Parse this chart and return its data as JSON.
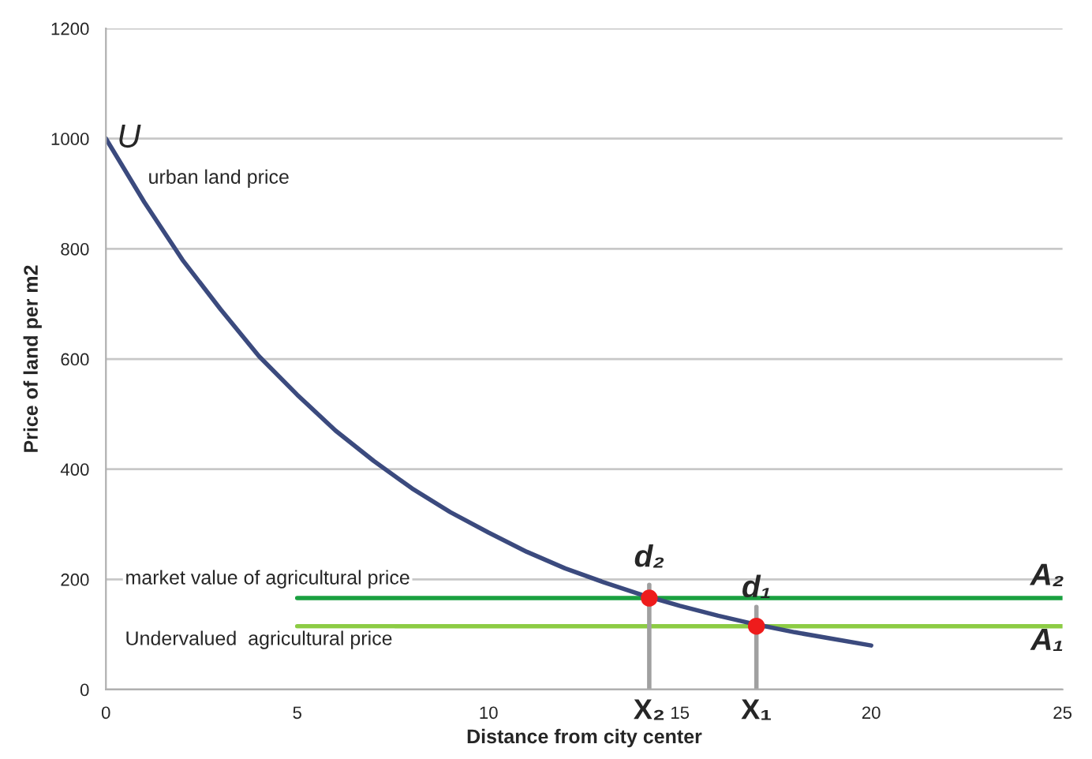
{
  "chart_data": {
    "type": "line",
    "xlabel": "Distance from city center",
    "ylabel": "Price of land per m2",
    "xlim": [
      0,
      25
    ],
    "xticks": [
      0,
      5,
      10,
      15,
      20,
      25
    ],
    "ylim": [
      0,
      1200
    ],
    "yticks": [
      0,
      200,
      400,
      600,
      800,
      1000,
      1200
    ],
    "grid": "y",
    "legend": false,
    "marker": "none",
    "line_style": "solid",
    "series": [
      {
        "color": "#3b4a7e",
        "x": [
          0,
          1,
          2,
          3,
          4,
          5,
          6,
          7,
          8,
          9,
          10,
          11,
          12,
          13,
          14,
          15,
          16,
          17,
          18,
          19,
          20
        ],
        "values": [
          1000,
          885,
          780,
          690,
          605,
          535,
          470,
          415,
          365,
          322,
          285,
          250,
          220,
          195,
          172,
          152,
          134,
          118,
          104,
          92,
          80
        ]
      },
      {
        "color": "#1aa040",
        "x": [
          5,
          25
        ],
        "values": [
          166,
          166
        ]
      },
      {
        "color": "#8ccc44",
        "x": [
          5,
          25
        ],
        "values": [
          115,
          115
        ]
      },
      {
        "color": "#a0a0a0",
        "x": [
          14.2,
          14.2
        ],
        "values": [
          0,
          190
        ]
      },
      {
        "color": "#a0a0a0",
        "x": [
          17,
          17
        ],
        "values": [
          0,
          150
        ]
      },
      {
        "type": "scatter",
        "marker": "circle",
        "color": "#ee1c1c",
        "x": [
          14.2,
          17
        ],
        "values": [
          166,
          115
        ]
      }
    ],
    "annotations": [
      "U",
      "urban land price",
      "market value of agricultural price",
      "Undervalued  agricultural price",
      "d₂",
      "d₁",
      "A₂",
      "A₁",
      {
        "text": "X₂",
        "x": 14.2,
        "y": 0
      },
      {
        "text": "X₁",
        "x": 17,
        "y": 0
      }
    ]
  }
}
